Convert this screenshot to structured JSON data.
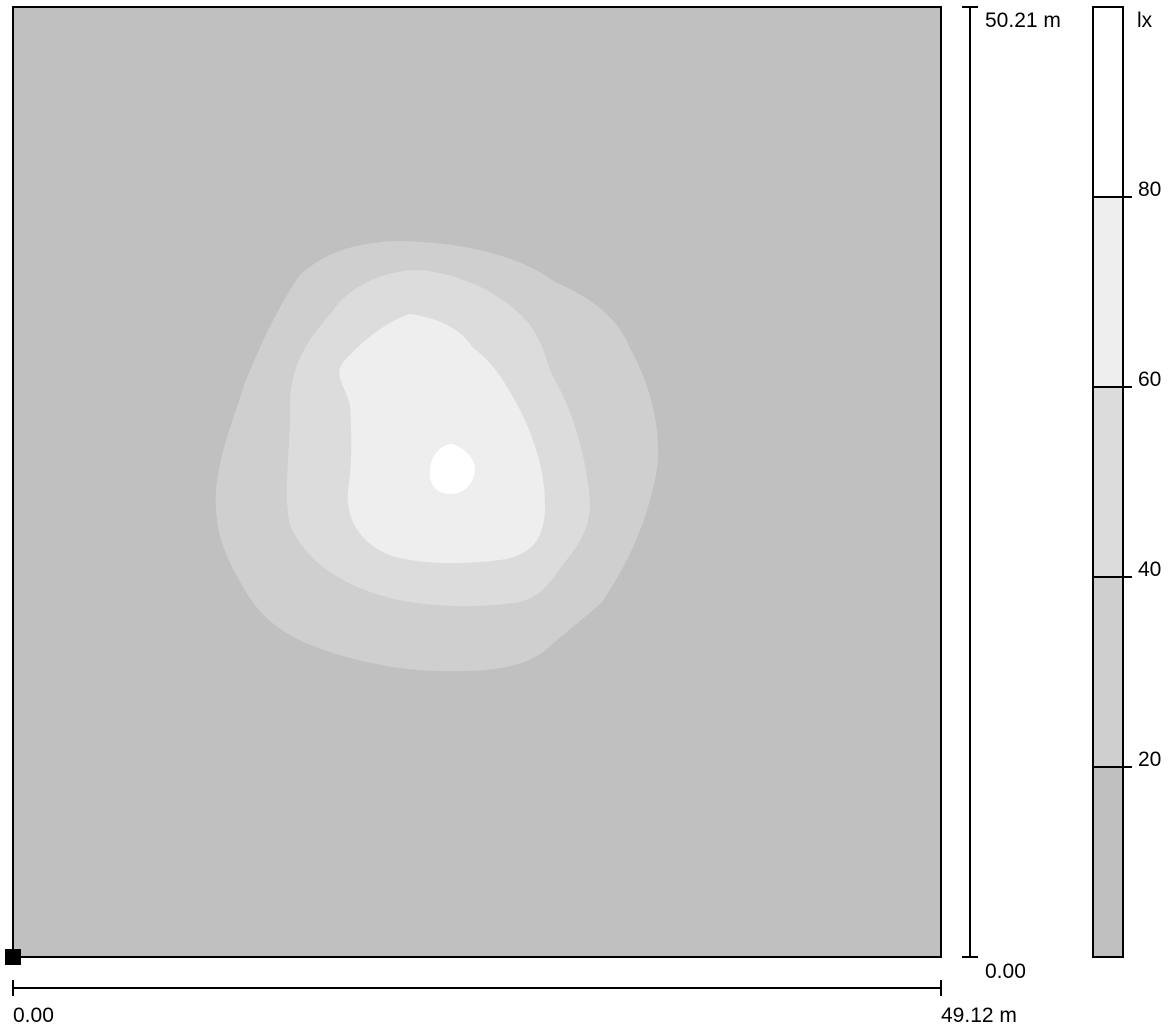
{
  "plan": {
    "x_origin": "0.00",
    "x_extent": "49.12 m",
    "y_origin": "0.00",
    "y_extent": "50.21 m"
  },
  "legend": {
    "unit": "lx",
    "levels": [
      "80",
      "60",
      "40",
      "20"
    ]
  },
  "colors": {
    "bands": [
      "#c0c0c0",
      "#cfcfcf",
      "#dcdcdc",
      "#eeeeee",
      "#ffffff"
    ],
    "line": "#000000",
    "background": "#ffffff"
  },
  "isolines_lx": [
    20,
    40,
    60,
    80
  ]
}
